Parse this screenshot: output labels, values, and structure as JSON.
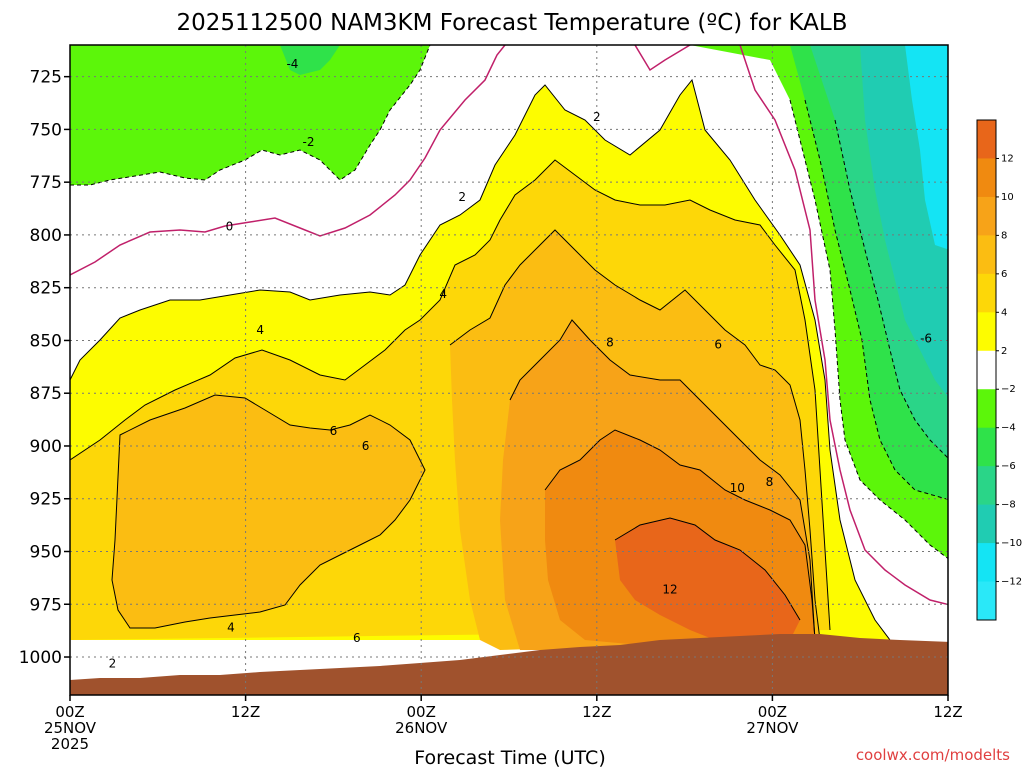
{
  "title": "2025112500 NAM3KM Forecast Temperature (ºC) for KALB",
  "credit": "coolwx.com/modelts",
  "chart_data": {
    "type": "heatmap",
    "title": "2025112500 NAM3KM Forecast Temperature (ºC) for KALB",
    "xlabel": "Forecast Time (UTC)",
    "ylabel": "",
    "x_hours": [
      0,
      12,
      24,
      36,
      48,
      60
    ],
    "x_ticks": [
      {
        "hour": 0,
        "lines": [
          "00Z",
          "25NOV",
          "2025"
        ]
      },
      {
        "hour": 12,
        "lines": [
          "12Z"
        ]
      },
      {
        "hour": 24,
        "lines": [
          "00Z",
          "26NOV"
        ]
      },
      {
        "hour": 36,
        "lines": [
          "12Z"
        ]
      },
      {
        "hour": 48,
        "lines": [
          "00Z",
          "27NOV"
        ]
      },
      {
        "hour": 60,
        "lines": [
          "12Z"
        ]
      }
    ],
    "y_ticks_hpa": [
      725,
      750,
      775,
      800,
      825,
      850,
      875,
      900,
      925,
      950,
      975,
      1000
    ],
    "y_range_hpa": [
      710,
      1018
    ],
    "x_range_hours": [
      0,
      60
    ],
    "grid": true,
    "colorbar": {
      "labels": [
        "12",
        "10",
        "8",
        "6",
        "4",
        "2",
        "−2",
        "−4",
        "−6",
        "−8",
        "−10",
        "−12"
      ],
      "colors": [
        "#e8661a",
        "#f08a10",
        "#f7a318",
        "#fbbd12",
        "#fdd708",
        "#fdfc00",
        "#ffffff",
        "#5cf60a",
        "#2fe24a",
        "#2ad588",
        "#20ccb2",
        "#14e4f4",
        "#2ae8f8"
      ]
    },
    "contour_labels": [
      {
        "t": 15.2,
        "p": 719,
        "label": "-4"
      },
      {
        "t": 16.3,
        "p": 756,
        "label": "-2"
      },
      {
        "t": 10.9,
        "p": 796,
        "label": "0"
      },
      {
        "t": 36.0,
        "p": 744,
        "label": "2"
      },
      {
        "t": 26.8,
        "p": 782,
        "label": "2"
      },
      {
        "t": 25.5,
        "p": 828,
        "label": "4"
      },
      {
        "t": 13.0,
        "p": 845,
        "label": "4"
      },
      {
        "t": 18.0,
        "p": 893,
        "label": "6"
      },
      {
        "t": 20.2,
        "p": 900,
        "label": "6"
      },
      {
        "t": 11.0,
        "p": 986,
        "label": "4"
      },
      {
        "t": 2.9,
        "p": 1003,
        "label": "2"
      },
      {
        "t": 19.6,
        "p": 991,
        "label": "6"
      },
      {
        "t": 36.9,
        "p": 851,
        "label": "8"
      },
      {
        "t": 44.3,
        "p": 852,
        "label": "6"
      },
      {
        "t": 45.6,
        "p": 920,
        "label": "10"
      },
      {
        "t": 47.8,
        "p": 917,
        "label": "8"
      },
      {
        "t": 41.0,
        "p": 968,
        "label": "12"
      },
      {
        "t": 58.5,
        "p": 849,
        "label": "-6"
      }
    ],
    "units": "ºC"
  }
}
